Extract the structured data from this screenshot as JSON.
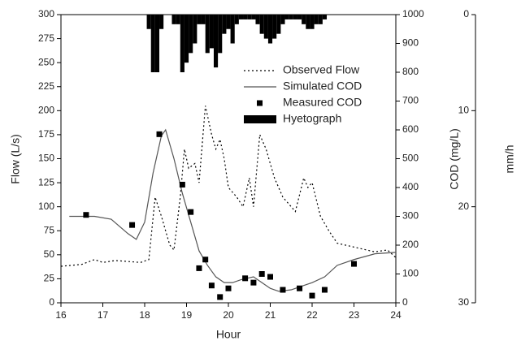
{
  "chart_data": {
    "type": "combo",
    "x_label": "Hour",
    "y_label": "Flow (L/s)",
    "y2_label": "COD (mg/L)",
    "y3_label": "mm/h",
    "xlim": [
      16,
      24
    ],
    "xticks": [
      16,
      17,
      18,
      19,
      20,
      21,
      22,
      23,
      24
    ],
    "ylim": [
      0,
      300
    ],
    "yticks": [
      0,
      25,
      50,
      75,
      100,
      125,
      150,
      175,
      200,
      225,
      250,
      275,
      300
    ],
    "y2lim": [
      0,
      1000
    ],
    "y2ticks": [
      0,
      100,
      200,
      300,
      400,
      500,
      600,
      700,
      800,
      900,
      1000
    ],
    "y3lim": [
      30,
      0
    ],
    "y3ticks": [
      0,
      10,
      20,
      30
    ],
    "legend": "upper right",
    "series": [
      {
        "name": "Observed Flow",
        "type": "line",
        "style": "dotted",
        "color": "#000000",
        "axis": "y",
        "x": [
          16,
          16.5,
          16.8,
          17,
          17.3,
          17.6,
          17.9,
          18.1,
          18.25,
          18.4,
          18.6,
          18.7,
          18.85,
          18.95,
          19.05,
          19.2,
          19.3,
          19.45,
          19.6,
          19.7,
          19.8,
          19.9,
          20.0,
          20.2,
          20.35,
          20.5,
          20.6,
          20.75,
          20.9,
          21.1,
          21.3,
          21.6,
          21.8,
          21.9,
          22.0,
          22.2,
          22.4,
          22.6,
          23,
          23.5,
          23.8,
          24
        ],
        "values": [
          38,
          40,
          45,
          42,
          44,
          43,
          42,
          45,
          110,
          90,
          60,
          55,
          110,
          160,
          140,
          145,
          125,
          205,
          175,
          160,
          170,
          150,
          120,
          110,
          100,
          130,
          100,
          175,
          160,
          130,
          110,
          95,
          130,
          120,
          125,
          90,
          75,
          62,
          58,
          53,
          55,
          47
        ]
      },
      {
        "name": "Simulated COD",
        "type": "line",
        "style": "solid",
        "color": "#555555",
        "axis": "y2",
        "x": [
          16.2,
          16.8,
          17.2,
          17.6,
          17.8,
          18.0,
          18.2,
          18.4,
          18.5,
          18.7,
          18.9,
          19.1,
          19.3,
          19.5,
          19.7,
          19.9,
          20.1,
          20.3,
          20.6,
          20.8,
          21.0,
          21.2,
          21.5,
          21.8,
          22.0,
          22.3,
          22.6,
          23.0,
          23.5,
          24
        ],
        "values": [
          300,
          300,
          290,
          240,
          220,
          280,
          450,
          580,
          600,
          500,
          380,
          280,
          180,
          130,
          90,
          70,
          70,
          80,
          90,
          70,
          50,
          40,
          45,
          60,
          70,
          90,
          130,
          150,
          170,
          175
        ]
      },
      {
        "name": "Measured COD",
        "type": "scatter",
        "color": "#000000",
        "axis": "y2",
        "x": [
          16.6,
          17.7,
          18.35,
          18.9,
          19.1,
          19.3,
          19.45,
          19.6,
          19.8,
          20.0,
          20.4,
          20.6,
          20.8,
          21.0,
          21.3,
          21.7,
          22.0,
          22.3,
          23.0
        ],
        "values": [
          305,
          270,
          585,
          410,
          315,
          120,
          150,
          60,
          20,
          50,
          85,
          70,
          100,
          90,
          45,
          50,
          25,
          45,
          135
        ]
      },
      {
        "name": "Hyetograph",
        "type": "bar",
        "color": "#000000",
        "axis": "y3",
        "x": [
          18.1,
          18.2,
          18.3,
          18.4,
          18.5,
          18.6,
          18.7,
          18.8,
          18.9,
          19.0,
          19.1,
          19.2,
          19.3,
          19.4,
          19.5,
          19.6,
          19.7,
          19.8,
          19.9,
          20.0,
          20.1,
          20.2,
          20.3,
          20.4,
          20.5,
          20.6,
          20.7,
          20.8,
          20.9,
          21.0,
          21.1,
          21.2,
          21.3,
          21.4,
          21.5,
          21.6,
          21.7,
          21.8,
          21.9,
          22.0,
          22.1,
          22.2,
          22.3
        ],
        "values": [
          1.5,
          6,
          6,
          1.5,
          0,
          0,
          1,
          1,
          6,
          5,
          4,
          3,
          1,
          1,
          4,
          3.5,
          5.5,
          4,
          2,
          1.5,
          3,
          1,
          0.5,
          0.5,
          0.5,
          0.5,
          1,
          2,
          2.5,
          3,
          2.5,
          2,
          1,
          0.5,
          0.5,
          0.5,
          0.5,
          1,
          1.5,
          1.5,
          1,
          1,
          0.5
        ]
      }
    ]
  }
}
